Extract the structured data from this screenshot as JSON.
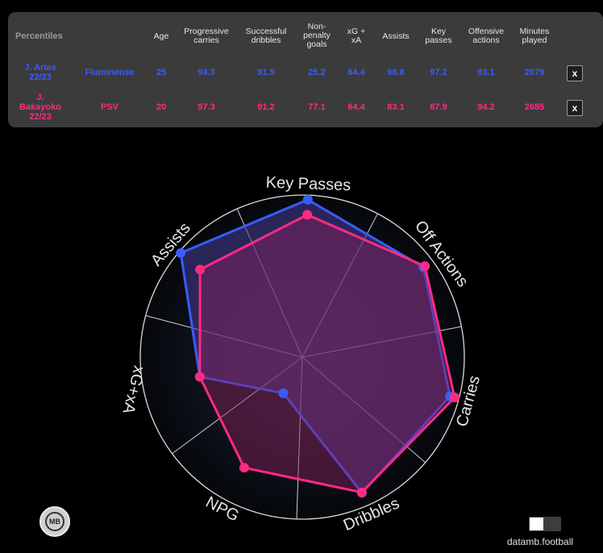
{
  "table": {
    "headers": [
      {
        "label": "Percentiles"
      },
      {
        "label": "Age"
      },
      {
        "label": "Progressive\ncarries"
      },
      {
        "label": "Successful\ndribbles"
      },
      {
        "label": "Non-\npenalty\ngoals"
      },
      {
        "label": "xG +\nxA"
      },
      {
        "label": "Assists"
      },
      {
        "label": "Key\npasses"
      },
      {
        "label": "Offensive\nactions"
      },
      {
        "label": "Minutes\nplayed"
      }
    ],
    "rows": [
      {
        "player": "J. Arias\n22/23",
        "team": "Fluminense",
        "values": [
          "25",
          "94.3",
          "91.5",
          "25.2",
          "64.4",
          "98.8",
          "97.2",
          "93.1",
          "2079"
        ],
        "remove_label": "x",
        "color": "#3a5cff"
      },
      {
        "player": "J.\nBakayoko\n22/23",
        "team": "PSV",
        "values": [
          "20",
          "97.3",
          "91.2",
          "77.1",
          "64.4",
          "83.1",
          "87.9",
          "94.2",
          "2685"
        ],
        "remove_label": "x",
        "color": "#ff2a83"
      }
    ]
  },
  "chart_data": {
    "type": "radar",
    "range": [
      0,
      100
    ],
    "axes": [
      "Key Passes",
      "Off Actions",
      "Carries",
      "Dribbles",
      "NPG",
      "xG+xA",
      "Assists"
    ],
    "series": [
      {
        "name": "J. Arias 22/23",
        "color": "#3a5cff",
        "values": [
          97.2,
          93.1,
          94.3,
          91.5,
          25.2,
          64.4,
          98.8
        ]
      },
      {
        "name": "J. Bakayoko 22/23",
        "color": "#ff2a83",
        "values": [
          87.9,
          94.2,
          97.3,
          91.2,
          77.1,
          64.4,
          83.1
        ]
      }
    ]
  },
  "footer": {
    "logo_text": "MB",
    "credit": "datamb.football"
  }
}
